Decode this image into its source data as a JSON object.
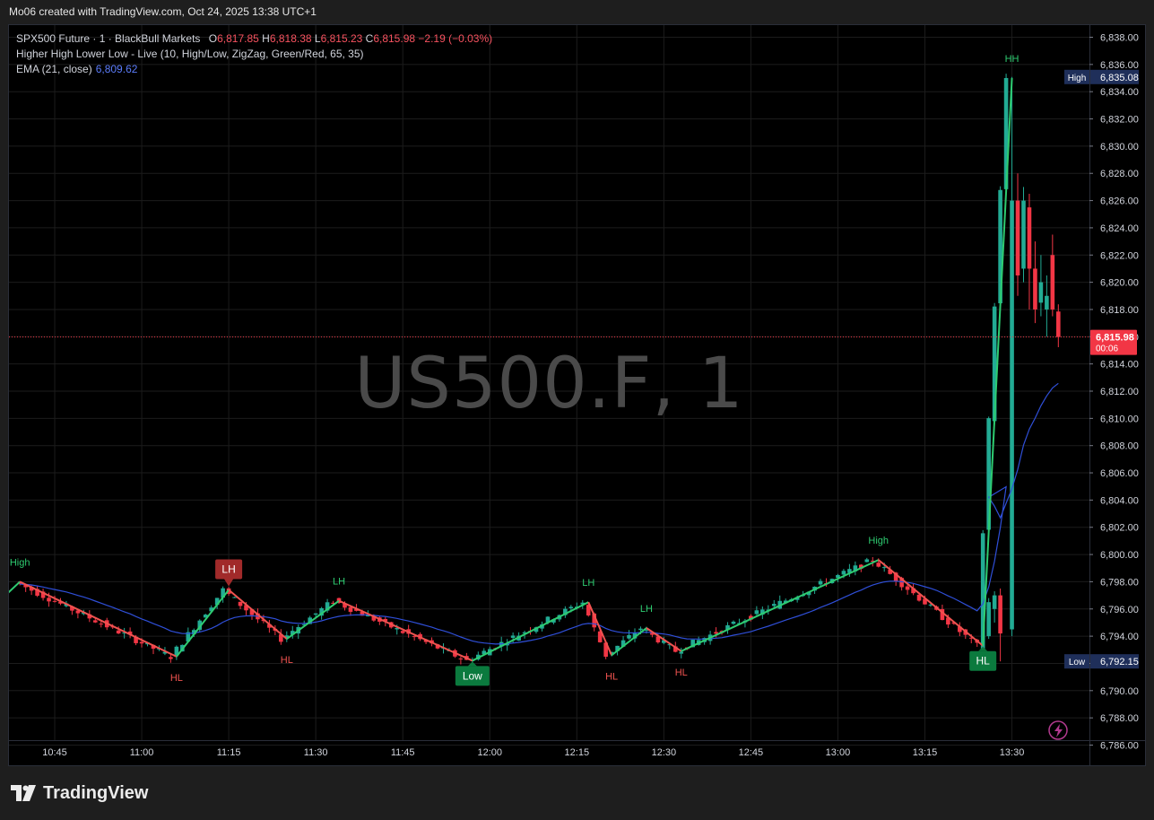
{
  "header": {
    "caption": "Mo06 created with TradingView.com, Oct 24, 2025 13:38 UTC+1"
  },
  "legend": {
    "symbol": "SPX500 Future · 1 · BlackBull Markets",
    "open_label": "O",
    "open": "6,817.85",
    "high_label": "H",
    "high": "6,818.38",
    "low_label": "L",
    "low": "6,815.23",
    "close_label": "C",
    "close": "6,815.98",
    "change": "−2.19 (−0.03%)",
    "indicator": "Higher High Lower Low - Live (10, High/Low, ZigZag, Green/Red, 65, 35)",
    "ema_label": "EMA (21, close)",
    "ema_value": "6,809.62"
  },
  "watermark": "US500.F, 1",
  "footer": {
    "brand": "TradingView"
  },
  "colors": {
    "up": "#22ab94",
    "down": "#f23645",
    "zig_up": "#2ecc71",
    "zig_down": "#f05350",
    "ema": "#2f4fd8",
    "grid": "#1c1c1c",
    "last_price_bg": "#f23645",
    "hl_box": "#1f2f5a"
  },
  "chart_data": {
    "type": "candlestick",
    "x_ticks": [
      "10:45",
      "11:00",
      "11:15",
      "11:30",
      "11:45",
      "12:00",
      "12:15",
      "12:30",
      "12:45",
      "13:00",
      "13:15",
      "13:30"
    ],
    "y_ticks": [
      "6,786.00",
      "6,788.00",
      "6,790.00",
      "6,792.00",
      "6,794.00",
      "6,796.00",
      "6,798.00",
      "6,800.00",
      "6,802.00",
      "6,804.00",
      "6,806.00",
      "6,808.00",
      "6,810.00",
      "6,812.00",
      "6,814.00",
      "6,816.00",
      "6,818.00",
      "6,820.00",
      "6,822.00",
      "6,824.00",
      "6,826.00",
      "6,828.00",
      "6,830.00",
      "6,832.00",
      "6,834.00",
      "6,836.00",
      "6,838.00"
    ],
    "y_range": [
      6785,
      6839
    ],
    "last_price": {
      "value": "6,815.98",
      "countdown": "00:06"
    },
    "high_marker": {
      "label": "High",
      "value": "6,835.08"
    },
    "low_marker": {
      "label": "Low",
      "value": "6,792.15"
    },
    "zigzag": [
      {
        "time": "10:37",
        "price": 6797.2
      },
      {
        "time": "10:39",
        "price": 6798.0,
        "label": "High"
      },
      {
        "time": "11:06",
        "price": 6792.5,
        "label": "HL"
      },
      {
        "time": "11:15",
        "price": 6797.4,
        "label": "LH"
      },
      {
        "time": "11:25",
        "price": 6793.8,
        "label": "HL"
      },
      {
        "time": "11:34",
        "price": 6796.6,
        "label": "LH"
      },
      {
        "time": "11:57",
        "price": 6792.2,
        "label": "Low"
      },
      {
        "time": "12:17",
        "price": 6796.5,
        "label": "LH"
      },
      {
        "time": "12:21",
        "price": 6792.6,
        "label": "HL"
      },
      {
        "time": "12:27",
        "price": 6794.6,
        "label": "LH"
      },
      {
        "time": "12:33",
        "price": 6792.9,
        "label": "HL"
      },
      {
        "time": "13:07",
        "price": 6799.6,
        "label": "High"
      },
      {
        "time": "13:25",
        "price": 6793.3,
        "label": "HL"
      },
      {
        "time": "13:30",
        "price": 6835.0,
        "label": "HH"
      }
    ],
    "candles_tail": [
      {
        "time": "13:31",
        "open": 6826.0,
        "high": 6828.0,
        "low": 6819.0,
        "close": 6820.5
      },
      {
        "time": "13:32",
        "open": 6821.0,
        "high": 6827.0,
        "low": 6820.0,
        "close": 6826.0
      },
      {
        "time": "13:33",
        "open": 6825.5,
        "high": 6826.5,
        "low": 6818.0,
        "close": 6821.0
      },
      {
        "time": "13:34",
        "open": 6821.0,
        "high": 6823.0,
        "low": 6817.0,
        "close": 6818.0
      },
      {
        "time": "13:35",
        "open": 6818.5,
        "high": 6822.0,
        "low": 6817.5,
        "close": 6820.0
      },
      {
        "time": "13:36",
        "open": 6818.0,
        "high": 6820.5,
        "low": 6816.0,
        "close": 6819.0
      },
      {
        "time": "13:37",
        "open": 6822.0,
        "high": 6823.5,
        "low": 6817.5,
        "close": 6818.0
      },
      {
        "time": "13:38",
        "open": 6817.85,
        "high": 6818.38,
        "low": 6815.23,
        "close": 6815.98
      }
    ]
  }
}
